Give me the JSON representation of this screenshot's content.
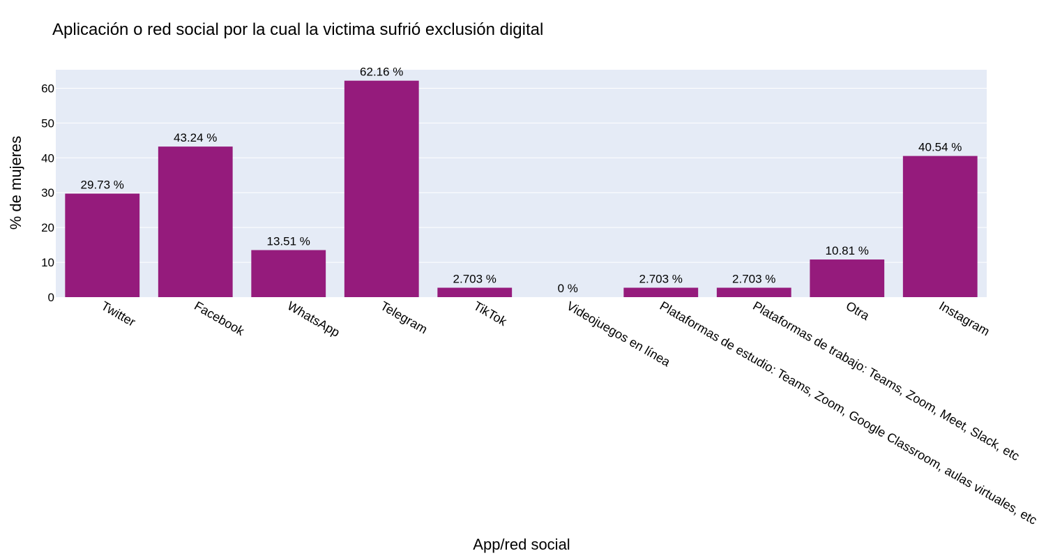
{
  "chart_data": {
    "type": "bar",
    "title": "Aplicación o red social por la cual la victima sufrió exclusión digital",
    "xlabel": "App/red social",
    "ylabel": "% de mujeres",
    "categories": [
      "Twitter",
      "Facebook",
      "WhatsApp",
      "Telegram",
      "TikTok",
      "Videojuegos en línea",
      "Plataformas de estudio: Teams, Zoom, Google Classroom, aulas virtuales, etc",
      "Plataformas de trabajo: Teams, Zoom, Meet, Slack, etc",
      "Otra",
      "Instagram"
    ],
    "values": [
      29.73,
      43.24,
      13.51,
      62.16,
      2.703,
      0,
      2.703,
      2.703,
      10.81,
      40.54
    ],
    "value_labels": [
      "29.73 %",
      "43.24 %",
      "13.51 %",
      "62.16 %",
      "2.703 %",
      "0 %",
      "2.703 %",
      "2.703 %",
      "10.81 %",
      "40.54 %"
    ],
    "yticks": [
      "0",
      "10",
      "20",
      "30",
      "40",
      "50",
      "60"
    ],
    "ytick_values": [
      0,
      10,
      20,
      30,
      40,
      50,
      60
    ],
    "ylim": [
      0,
      65.3
    ],
    "grid": true,
    "colors": {
      "bar": "#951b7c",
      "plot_bg": "#e5ebf6",
      "grid": "#ffffff"
    }
  }
}
